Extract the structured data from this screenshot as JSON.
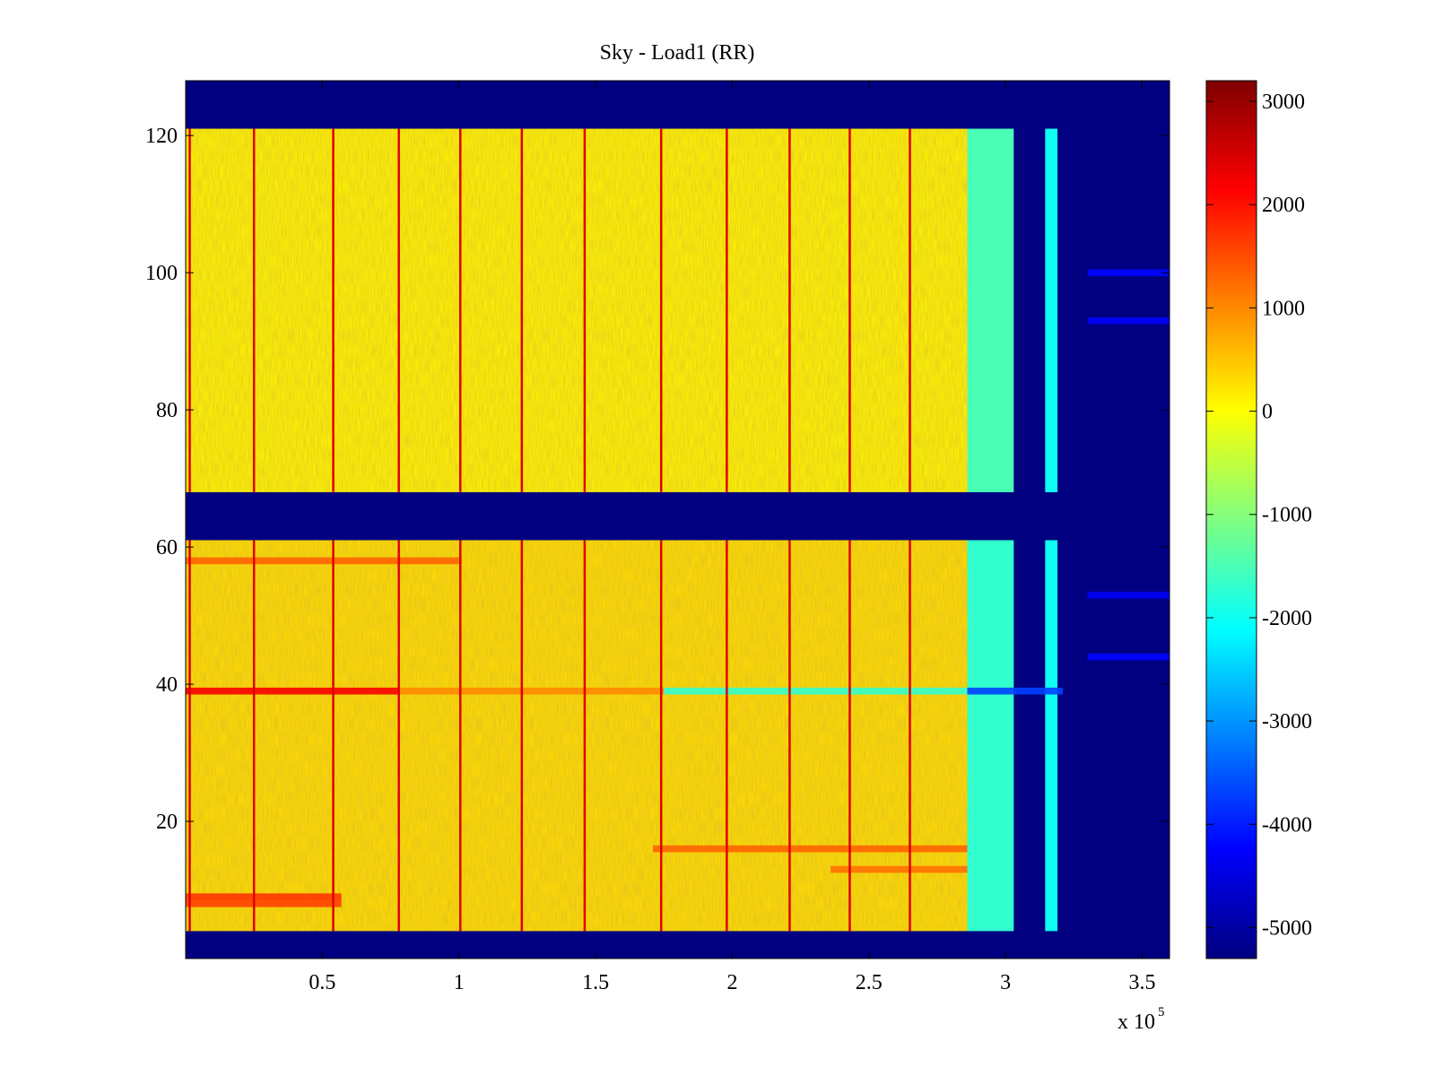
{
  "chart_data": {
    "type": "heatmap",
    "title": "Sky - Load1 (RR)",
    "xlabel": "",
    "ylabel": "",
    "x_multiplier_label": "x 10",
    "x_multiplier_exponent": "5",
    "xlim": [
      0,
      360000
    ],
    "ylim": [
      0,
      128
    ],
    "x_ticks": [
      {
        "value": 0.5,
        "label": "0.5"
      },
      {
        "value": 1.0,
        "label": "1"
      },
      {
        "value": 1.5,
        "label": "1.5"
      },
      {
        "value": 2.0,
        "label": "2"
      },
      {
        "value": 2.5,
        "label": "2.5"
      },
      {
        "value": 3.0,
        "label": "3"
      },
      {
        "value": 3.5,
        "label": "3.5"
      }
    ],
    "y_ticks": [
      {
        "value": 20,
        "label": "20"
      },
      {
        "value": 40,
        "label": "40"
      },
      {
        "value": 60,
        "label": "60"
      },
      {
        "value": 80,
        "label": "80"
      },
      {
        "value": 100,
        "label": "100"
      },
      {
        "value": 120,
        "label": "120"
      }
    ],
    "colorbar": {
      "colormap": "jet",
      "clim": [
        -5300,
        3200
      ],
      "ticks": [
        {
          "value": 3000,
          "label": "3000"
        },
        {
          "value": 2000,
          "label": "2000"
        },
        {
          "value": 1000,
          "label": "1000"
        },
        {
          "value": 0,
          "label": "0"
        },
        {
          "value": -1000,
          "label": "-1000"
        },
        {
          "value": -2000,
          "label": "-2000"
        },
        {
          "value": -3000,
          "label": "-3000"
        },
        {
          "value": -4000,
          "label": "-4000"
        },
        {
          "value": -5000,
          "label": "-5000"
        }
      ]
    },
    "background_value": -5300,
    "regions": [
      {
        "name": "upper-band-main",
        "x": [
          0,
          286000
        ],
        "y": [
          68,
          121
        ],
        "value": 100
      },
      {
        "name": "lower-band-main",
        "x": [
          0,
          286000
        ],
        "y": [
          4,
          61
        ],
        "value": 300
      },
      {
        "name": "upper-band-transition",
        "x": [
          286000,
          303000
        ],
        "y": [
          68,
          121
        ],
        "value": -1500
      },
      {
        "name": "lower-band-transition",
        "x": [
          286000,
          303000
        ],
        "y": [
          4,
          61
        ],
        "value": -1700
      },
      {
        "name": "upper-band-stripe",
        "x": [
          314500,
          319000
        ],
        "y": [
          68,
          121
        ],
        "value": -2000
      },
      {
        "name": "lower-band-stripe",
        "x": [
          314500,
          319000
        ],
        "y": [
          4,
          61
        ],
        "value": -2000
      }
    ],
    "vertical_lines_x": [
      1500,
      25000,
      54000,
      78000,
      100500,
      123000,
      146000,
      174000,
      198000,
      221000,
      243000,
      265000
    ],
    "vertical_line_value": 2400,
    "horizontal_features": [
      {
        "y": 39,
        "x": [
          0,
          78000
        ],
        "value": 2200
      },
      {
        "y": 39,
        "x": [
          78000,
          175000
        ],
        "value": 1000
      },
      {
        "y": 39,
        "x": [
          175000,
          286000
        ],
        "value": -1700
      },
      {
        "y": 39,
        "x": [
          286000,
          321000
        ],
        "value": -3700
      },
      {
        "y": 9,
        "x": [
          0,
          57000
        ],
        "value": 1700
      },
      {
        "y": 8,
        "x": [
          0,
          57000
        ],
        "value": 1600
      },
      {
        "y": 58,
        "x": [
          0,
          100000
        ],
        "value": 1300
      },
      {
        "y": 16,
        "x": [
          171000,
          286000
        ],
        "value": 1300
      },
      {
        "y": 13,
        "x": [
          236000,
          286000
        ],
        "value": 1200
      }
    ],
    "sparse_features": [
      {
        "y": 100,
        "x": [
          330000,
          360000
        ],
        "value": -4200
      },
      {
        "y": 93,
        "x": [
          330000,
          360000
        ],
        "value": -4300
      },
      {
        "y": 53,
        "x": [
          330000,
          360000
        ],
        "value": -4300
      },
      {
        "y": 44,
        "x": [
          330000,
          360000
        ],
        "value": -4200
      }
    ]
  }
}
